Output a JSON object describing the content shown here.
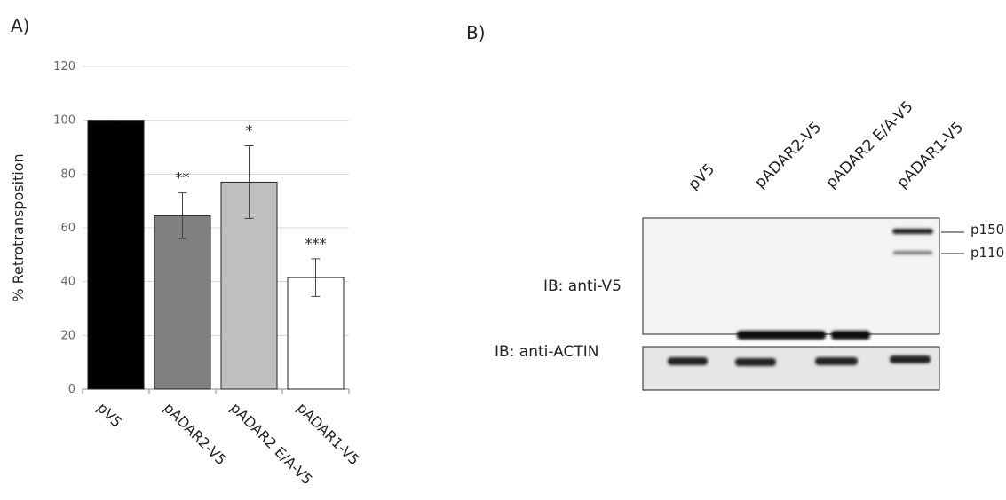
{
  "panel_labels": [
    "A)",
    "B)"
  ],
  "chart_data": {
    "type": "bar",
    "y_label": "% Retrotransposition",
    "categories": [
      "pV5",
      "pADAR2-V5",
      "pADAR2 E/A-V5",
      "pADAR1-V5"
    ],
    "values": [
      100,
      64.5,
      77,
      41.5
    ],
    "errors": [
      0,
      8.5,
      13.5,
      7
    ],
    "significance": [
      null,
      "**",
      "*",
      "***"
    ],
    "colors": [
      "#000000",
      "#808080",
      "#bfbfbf",
      "#ffffff"
    ],
    "ylim": [
      0,
      120
    ],
    "yticks": [
      0,
      20,
      40,
      60,
      80,
      100,
      120
    ],
    "grid": true
  },
  "blot": {
    "lanes": [
      "pV5",
      "pADAR2-V5",
      "pADAR2 E/A-V5",
      "pADAR1-V5"
    ],
    "rows": [
      "IB: anti-V5",
      "IB: anti-ACTIN"
    ],
    "markers": [
      "p150",
      "p110"
    ]
  }
}
